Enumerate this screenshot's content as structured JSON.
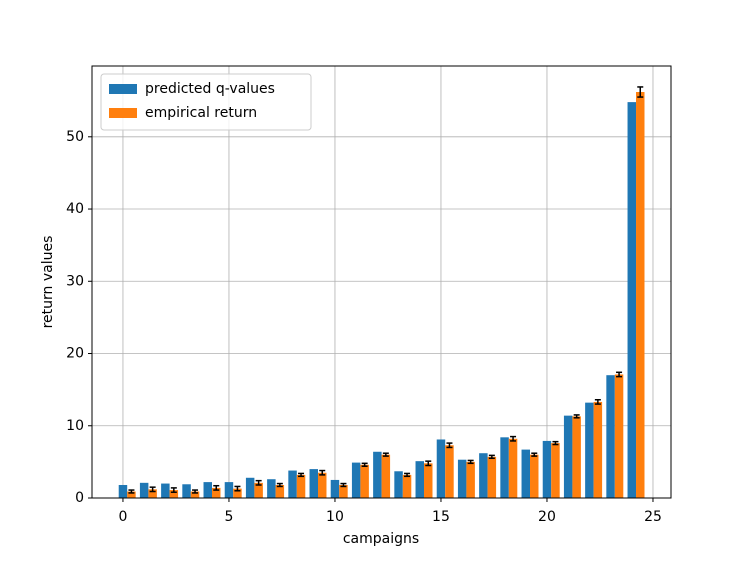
{
  "chart_data": {
    "type": "bar",
    "xlabel": "campaigns",
    "ylabel": "return values",
    "x": [
      0,
      1,
      2,
      3,
      4,
      5,
      6,
      7,
      8,
      9,
      10,
      11,
      12,
      13,
      14,
      15,
      16,
      17,
      18,
      19,
      20,
      21,
      22,
      23,
      24
    ],
    "series": [
      {
        "name": "predicted q-values",
        "color": "#1f77b4",
        "values": [
          1.8,
          2.1,
          2.0,
          1.9,
          2.2,
          2.2,
          2.8,
          2.6,
          3.8,
          4.0,
          2.5,
          4.9,
          6.4,
          3.7,
          5.1,
          8.1,
          5.3,
          6.2,
          8.4,
          6.7,
          7.9,
          11.4,
          13.2,
          17.0,
          54.8
        ]
      },
      {
        "name": "empirical return",
        "color": "#ff7f0e",
        "values": [
          0.9,
          1.2,
          1.1,
          0.9,
          1.4,
          1.3,
          2.1,
          1.8,
          3.2,
          3.5,
          1.8,
          4.6,
          6.0,
          3.2,
          4.8,
          7.3,
          5.0,
          5.7,
          8.2,
          6.0,
          7.6,
          11.3,
          13.3,
          17.1,
          56.2
        ],
        "errors": [
          0.2,
          0.3,
          0.3,
          0.2,
          0.3,
          0.3,
          0.3,
          0.2,
          0.2,
          0.3,
          0.2,
          0.2,
          0.2,
          0.2,
          0.3,
          0.3,
          0.2,
          0.2,
          0.3,
          0.2,
          0.2,
          0.2,
          0.3,
          0.3,
          0.7
        ]
      }
    ],
    "xlim": [
      -1.46,
      25.85
    ],
    "ylim": [
      0,
      59.8
    ],
    "xticks": [
      0,
      5,
      10,
      15,
      20,
      25
    ],
    "yticks": [
      0,
      10,
      20,
      30,
      40,
      50
    ],
    "grid": true,
    "legend": "upper-left"
  }
}
